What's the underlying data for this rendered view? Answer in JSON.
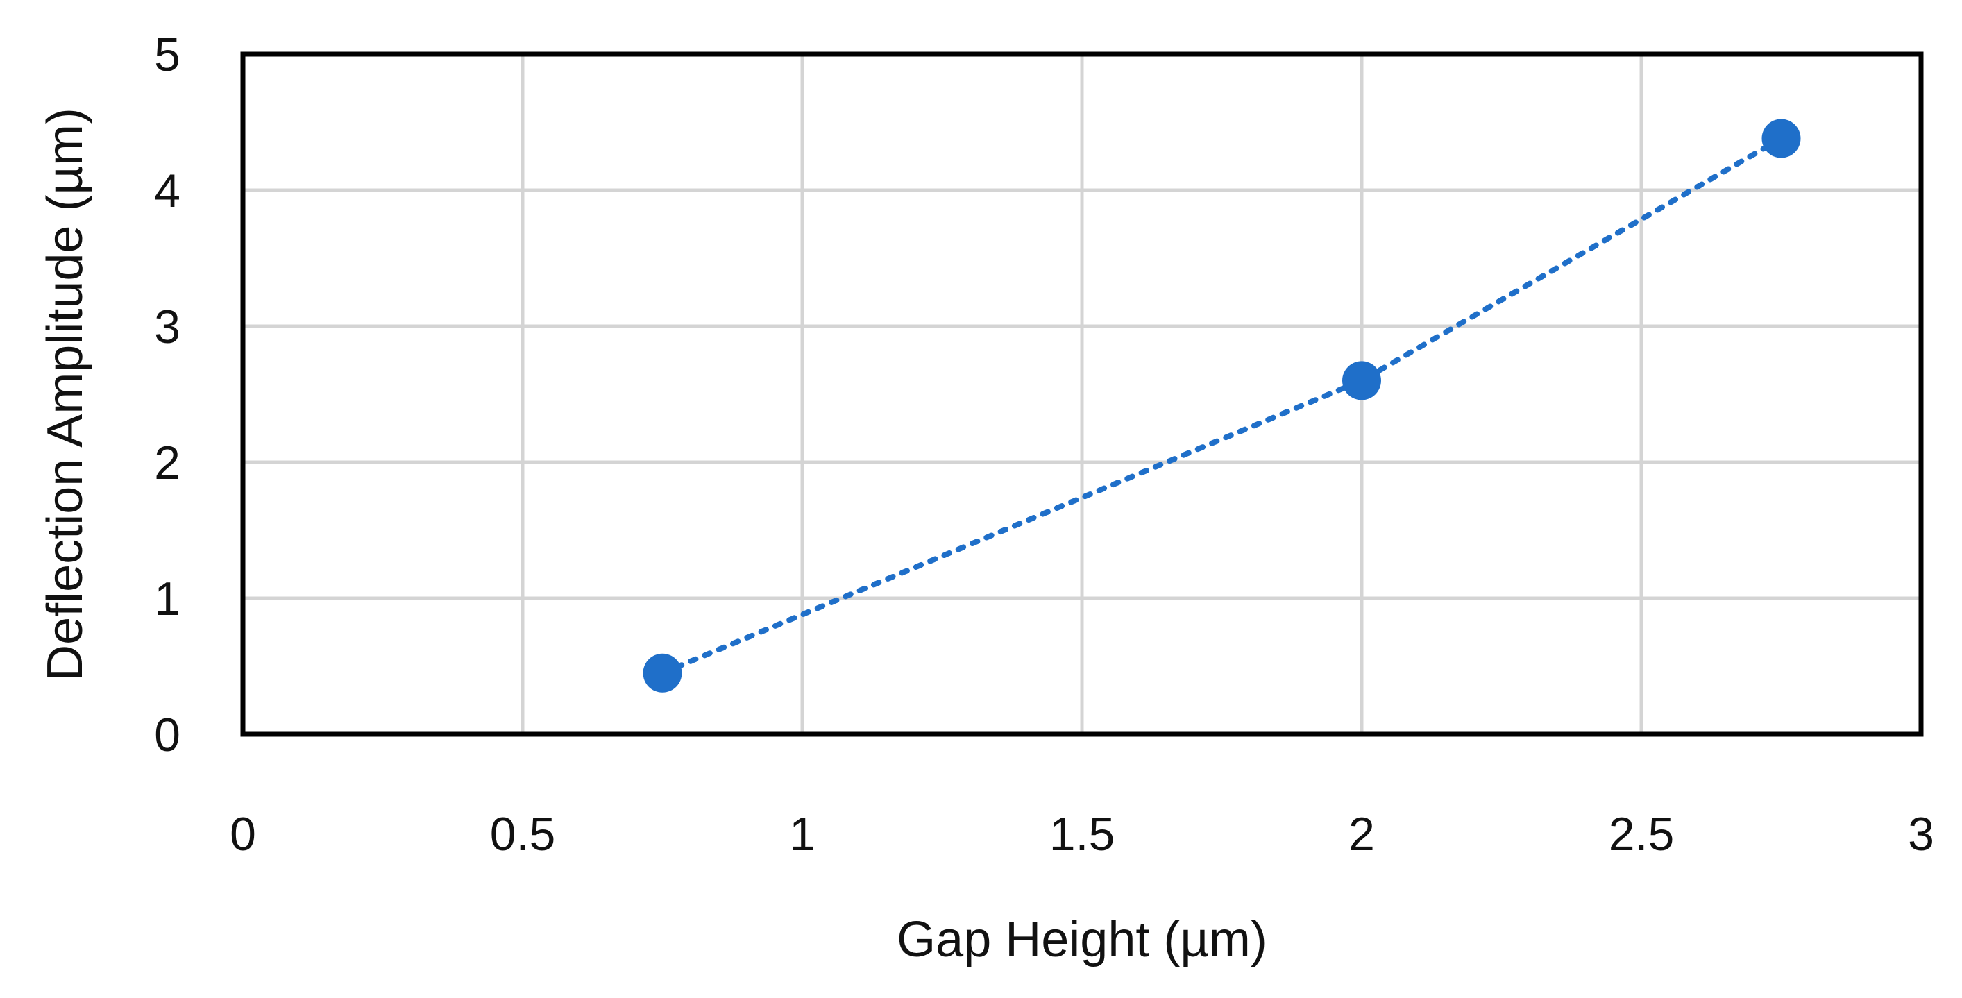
{
  "chart_data": {
    "type": "scatter",
    "title": "",
    "xlabel": "Gap Height (µm)",
    "ylabel": "Deflection Amplitude (µm)",
    "xlim": [
      0,
      3
    ],
    "ylim": [
      0,
      5
    ],
    "x_ticks": [
      0,
      0.5,
      1,
      1.5,
      2,
      2.5,
      3
    ],
    "x_tick_labels": [
      "0",
      "0.5",
      "1",
      "1.5",
      "2",
      "2.5",
      "3"
    ],
    "y_ticks": [
      0,
      1,
      2,
      3,
      4,
      5
    ],
    "y_tick_labels": [
      "0",
      "1",
      "2",
      "3",
      "4",
      "5"
    ],
    "grid": true,
    "legend": "none",
    "series": [
      {
        "x": [
          0.75,
          2.0,
          2.75
        ],
        "y": [
          0.45,
          2.6,
          4.38
        ],
        "color": "#1f6fc9",
        "marker": "circle",
        "line": "dotted"
      }
    ]
  }
}
